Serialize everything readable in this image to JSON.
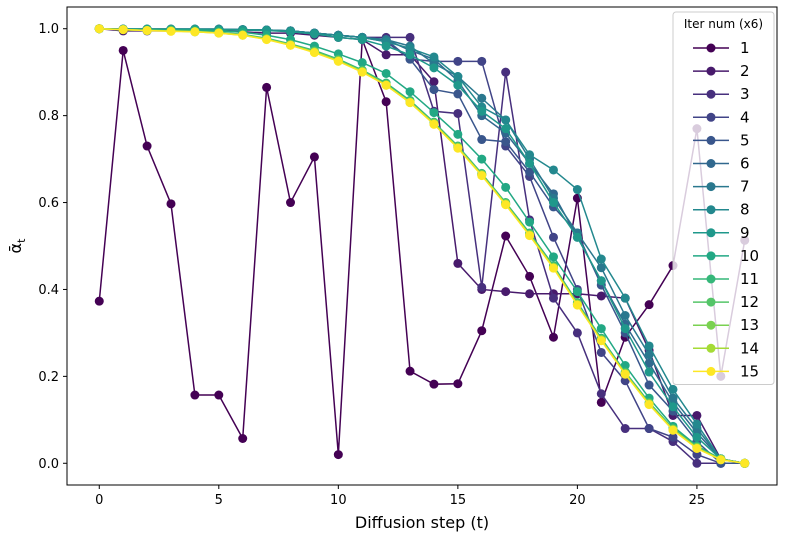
{
  "chart_data": {
    "type": "line",
    "xlabel": "Diffusion step (t)",
    "ylabel": "ᾱ",
    "ylabel_sub": "t",
    "xlim": [
      -1.35,
      28.35
    ],
    "ylim": [
      -0.05,
      1.05
    ],
    "xticks": [
      0,
      5,
      10,
      15,
      20,
      25
    ],
    "yticks": [
      0.0,
      0.2,
      0.4,
      0.6,
      0.8,
      1.0
    ],
    "grid": false,
    "legend": {
      "title": "Iter num (x6)",
      "placement": "upper right"
    },
    "x": [
      0,
      1,
      2,
      3,
      4,
      5,
      6,
      7,
      8,
      9,
      10,
      11,
      12,
      13,
      14,
      15,
      16,
      17,
      18,
      19,
      20,
      21,
      22,
      23,
      24,
      25,
      26,
      27
    ],
    "series": [
      {
        "name": "1",
        "color": "#440154",
        "values": [
          0.373,
          0.95,
          0.73,
          0.597,
          0.157,
          0.157,
          0.057,
          0.865,
          0.6,
          0.705,
          0.02,
          0.975,
          0.832,
          0.212,
          0.182,
          0.183,
          0.305,
          0.523,
          0.43,
          0.29,
          0.61,
          0.14,
          0.29,
          0.365,
          0.455,
          0.77,
          0.2,
          0.513
        ]
      },
      {
        "name": "2",
        "color": "#481a6c",
        "values": [
          1.0,
          0.995,
          0.995,
          0.995,
          0.995,
          0.995,
          0.993,
          0.99,
          0.99,
          0.985,
          0.98,
          0.975,
          0.94,
          0.94,
          0.878,
          0.46,
          0.4,
          0.395,
          0.39,
          0.39,
          0.39,
          0.385,
          0.38,
          0.26,
          0.11,
          0.11,
          0.01,
          0.0
        ]
      },
      {
        "name": "3",
        "color": "#472f7d",
        "values": [
          1.0,
          0.999,
          0.999,
          0.999,
          0.998,
          0.998,
          0.997,
          0.996,
          0.995,
          0.99,
          0.985,
          0.98,
          0.98,
          0.98,
          0.81,
          0.805,
          0.405,
          0.9,
          0.56,
          0.38,
          0.3,
          0.16,
          0.08,
          0.08,
          0.05,
          0.0,
          0.0,
          0.0
        ]
      },
      {
        "name": "4",
        "color": "#414487",
        "values": [
          1.0,
          0.999,
          0.999,
          0.999,
          0.999,
          0.998,
          0.997,
          0.996,
          0.995,
          0.99,
          0.985,
          0.98,
          0.97,
          0.93,
          0.925,
          0.925,
          0.925,
          0.73,
          0.66,
          0.52,
          0.4,
          0.255,
          0.19,
          0.08,
          0.06,
          0.02,
          0.0,
          0.0
        ]
      },
      {
        "name": "5",
        "color": "#39568c",
        "values": [
          1.0,
          0.999,
          0.999,
          0.999,
          0.999,
          0.999,
          0.998,
          0.997,
          0.995,
          0.99,
          0.985,
          0.98,
          0.975,
          0.93,
          0.86,
          0.85,
          0.745,
          0.74,
          0.67,
          0.59,
          0.53,
          0.41,
          0.3,
          0.18,
          0.12,
          0.05,
          0.0,
          0.0
        ]
      },
      {
        "name": "6",
        "color": "#31688e",
        "values": [
          1.0,
          0.999,
          0.999,
          0.999,
          0.999,
          0.999,
          0.998,
          0.997,
          0.995,
          0.99,
          0.985,
          0.98,
          0.975,
          0.95,
          0.93,
          0.88,
          0.8,
          0.76,
          0.69,
          0.62,
          0.52,
          0.42,
          0.32,
          0.23,
          0.14,
          0.07,
          0.01,
          0.0
        ]
      },
      {
        "name": "7",
        "color": "#2a788e",
        "values": [
          1.0,
          0.999,
          0.999,
          0.999,
          0.999,
          0.999,
          0.998,
          0.997,
          0.995,
          0.99,
          0.985,
          0.98,
          0.975,
          0.96,
          0.92,
          0.89,
          0.84,
          0.79,
          0.7,
          0.61,
          0.53,
          0.45,
          0.34,
          0.25,
          0.15,
          0.08,
          0.01,
          0.0
        ]
      },
      {
        "name": "8",
        "color": "#23888e",
        "values": [
          1.0,
          0.999,
          0.999,
          0.999,
          0.999,
          0.999,
          0.998,
          0.997,
          0.995,
          0.99,
          0.985,
          0.98,
          0.97,
          0.955,
          0.935,
          0.89,
          0.82,
          0.79,
          0.71,
          0.675,
          0.63,
          0.47,
          0.38,
          0.27,
          0.17,
          0.09,
          0.01,
          0.0
        ]
      },
      {
        "name": "9",
        "color": "#1f988b",
        "values": [
          1.0,
          0.999,
          0.999,
          0.999,
          0.999,
          0.998,
          0.997,
          0.996,
          0.993,
          0.988,
          0.98,
          0.975,
          0.96,
          0.94,
          0.91,
          0.87,
          0.81,
          0.77,
          0.69,
          0.6,
          0.52,
          0.42,
          0.31,
          0.21,
          0.13,
          0.06,
          0.01,
          0.0
        ]
      },
      {
        "name": "10",
        "color": "#22a884",
        "values": [
          1.0,
          0.999,
          0.999,
          0.998,
          0.997,
          0.995,
          0.992,
          0.985,
          0.975,
          0.96,
          0.942,
          0.922,
          0.897,
          0.855,
          0.807,
          0.757,
          0.7,
          0.635,
          0.555,
          0.475,
          0.395,
          0.31,
          0.225,
          0.15,
          0.085,
          0.04,
          0.01,
          0.0
        ]
      },
      {
        "name": "11",
        "color": "#35b779",
        "values": [
          1.0,
          0.998,
          0.996,
          0.995,
          0.994,
          0.992,
          0.987,
          0.978,
          0.965,
          0.95,
          0.93,
          0.905,
          0.875,
          0.835,
          0.785,
          0.73,
          0.667,
          0.6,
          0.53,
          0.455,
          0.37,
          0.288,
          0.21,
          0.14,
          0.08,
          0.038,
          0.01,
          0.0
        ]
      },
      {
        "name": "12",
        "color": "#54c568",
        "values": [
          1.0,
          0.998,
          0.996,
          0.995,
          0.994,
          0.991,
          0.986,
          0.977,
          0.964,
          0.948,
          0.928,
          0.903,
          0.872,
          0.832,
          0.783,
          0.728,
          0.665,
          0.598,
          0.527,
          0.452,
          0.367,
          0.285,
          0.208,
          0.138,
          0.079,
          0.037,
          0.009,
          0.0
        ]
      },
      {
        "name": "13",
        "color": "#7ad151",
        "values": [
          1.0,
          0.998,
          0.996,
          0.995,
          0.993,
          0.991,
          0.986,
          0.976,
          0.963,
          0.947,
          0.927,
          0.902,
          0.871,
          0.831,
          0.782,
          0.727,
          0.664,
          0.597,
          0.526,
          0.451,
          0.366,
          0.284,
          0.207,
          0.137,
          0.078,
          0.036,
          0.009,
          0.0
        ]
      },
      {
        "name": "14",
        "color": "#a5db36",
        "values": [
          1.0,
          0.998,
          0.996,
          0.995,
          0.993,
          0.99,
          0.985,
          0.976,
          0.962,
          0.946,
          0.926,
          0.901,
          0.87,
          0.83,
          0.781,
          0.726,
          0.663,
          0.596,
          0.525,
          0.45,
          0.365,
          0.283,
          0.206,
          0.136,
          0.077,
          0.035,
          0.008,
          0.0
        ]
      },
      {
        "name": "15",
        "color": "#fde725",
        "values": [
          1.0,
          0.998,
          0.996,
          0.994,
          0.993,
          0.99,
          0.985,
          0.975,
          0.962,
          0.945,
          0.925,
          0.9,
          0.87,
          0.83,
          0.78,
          0.725,
          0.662,
          0.595,
          0.524,
          0.449,
          0.364,
          0.282,
          0.205,
          0.135,
          0.076,
          0.034,
          0.008,
          0.0
        ]
      }
    ]
  }
}
